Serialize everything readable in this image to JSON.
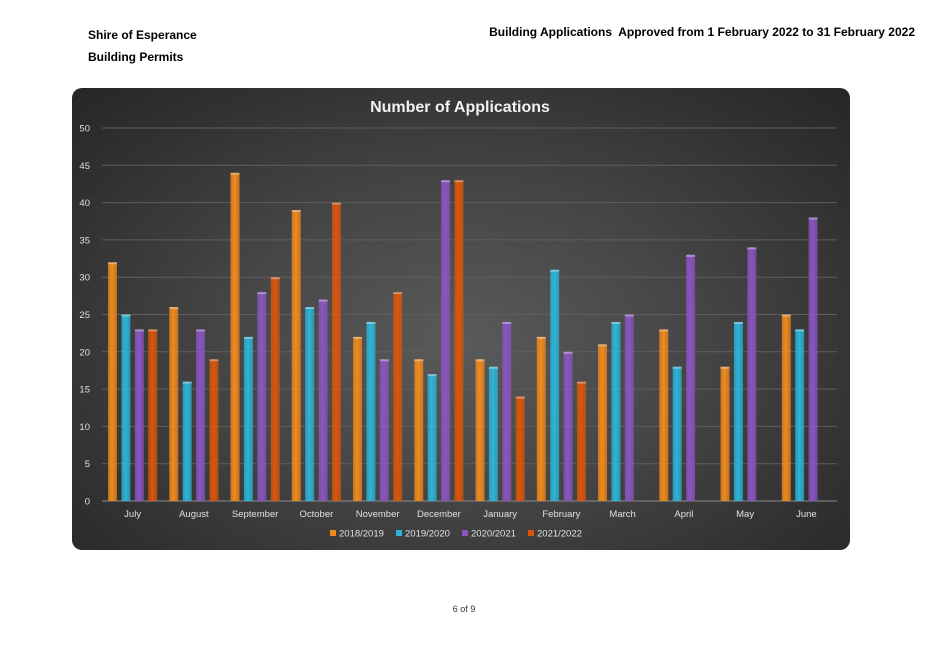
{
  "header": {
    "org": "Shire of Esperance",
    "section": "Building Permits",
    "report_title": "Building Applications  Approved from 1 February 2022 to 31 February 2022"
  },
  "footer": {
    "page": "6 of 9"
  },
  "chart_data": {
    "type": "bar",
    "title": "Number of Applications",
    "xlabel": "",
    "ylabel": "",
    "ylim": [
      0,
      50
    ],
    "yticks": [
      0,
      5,
      10,
      15,
      20,
      25,
      30,
      35,
      40,
      45,
      50
    ],
    "grid": true,
    "legend_position": "bottom",
    "categories": [
      "July",
      "August",
      "September",
      "October",
      "November",
      "December",
      "January",
      "February",
      "March",
      "April",
      "May",
      "June"
    ],
    "series": [
      {
        "name": "2018/2019",
        "color": "#f08a1c",
        "values": [
          32,
          26,
          44,
          39,
          22,
          19,
          19,
          22,
          21,
          23,
          18,
          25
        ]
      },
      {
        "name": "2019/2020",
        "color": "#2bb5d8",
        "values": [
          25,
          16,
          22,
          26,
          24,
          17,
          18,
          31,
          24,
          18,
          24,
          23
        ]
      },
      {
        "name": "2020/2021",
        "color": "#8a55c0",
        "values": [
          23,
          23,
          28,
          27,
          19,
          43,
          24,
          20,
          25,
          33,
          34,
          38
        ]
      },
      {
        "name": "2021/2022",
        "color": "#d9560a",
        "values": [
          23,
          19,
          30,
          40,
          28,
          43,
          14,
          16,
          null,
          null,
          null,
          null
        ]
      }
    ]
  }
}
